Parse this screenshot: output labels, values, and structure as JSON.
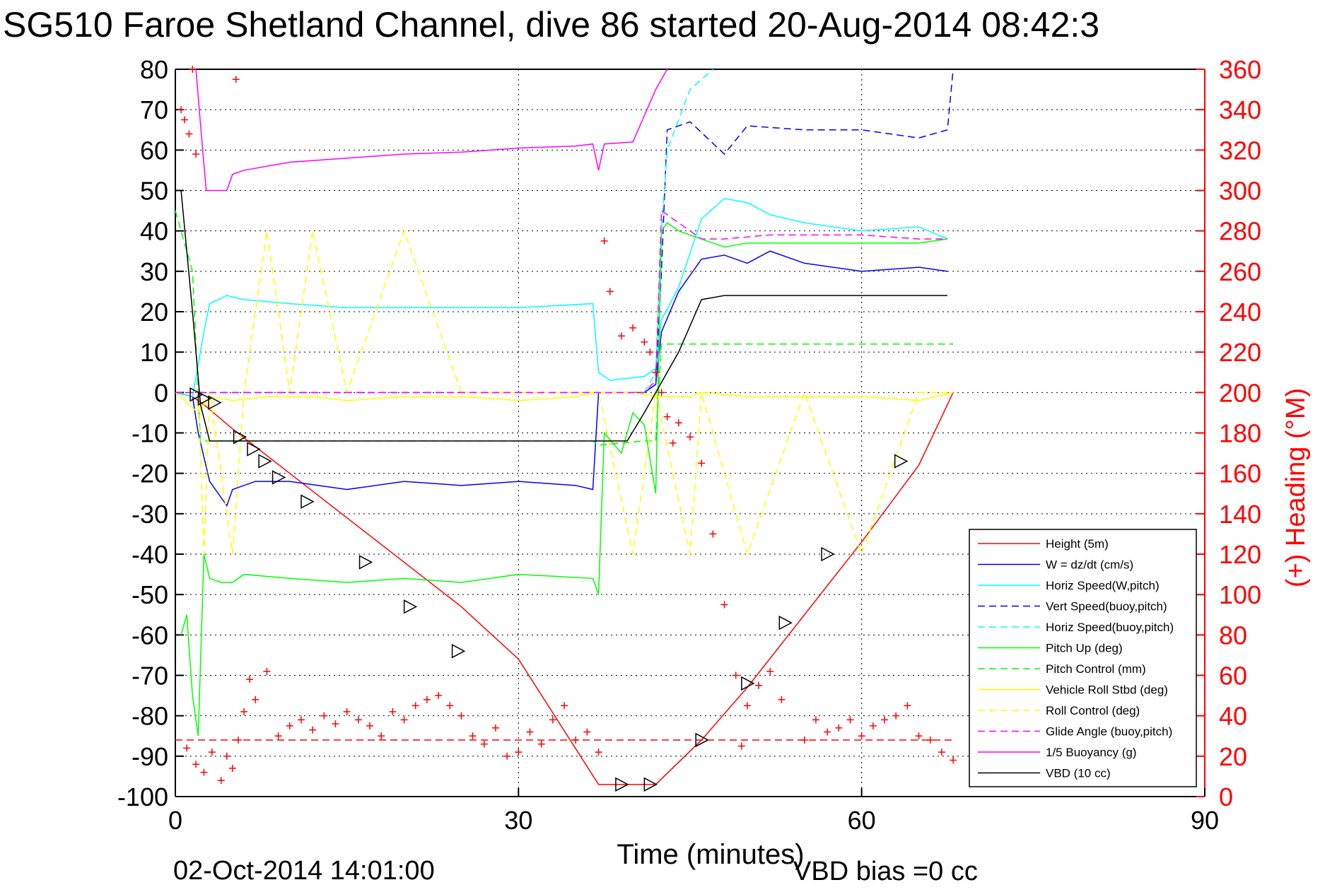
{
  "chart_data": {
    "type": "line",
    "title": "SG510 Faroe Shetland Channel, dive 86 started 20-Aug-2014 08:42:3",
    "xlabel": "Time (minutes)",
    "ylabel_right": "(+) Heading (°M)",
    "footer_left": "02-Oct-2014 14:01:00",
    "footer_right": "VBD bias =0 cc",
    "xlim": [
      0,
      90
    ],
    "ylim_left": [
      -100,
      80
    ],
    "ylim_right": [
      0,
      360
    ],
    "xticks": [
      0,
      30,
      60,
      90
    ],
    "yticks_left": [
      80,
      70,
      60,
      50,
      40,
      30,
      20,
      10,
      0,
      -10,
      -20,
      -30,
      -40,
      -50,
      -60,
      -70,
      -80,
      -90,
      -100
    ],
    "yticks_right": [
      360,
      340,
      320,
      300,
      280,
      260,
      240,
      220,
      200,
      180,
      160,
      140,
      120,
      100,
      80,
      60,
      40,
      20,
      0
    ],
    "grid": true,
    "legend_position": "bottom-right",
    "colors": {
      "red": "#ff0000",
      "blue": "#0000ff",
      "cyan": "#00ffff",
      "green": "#00ff00",
      "yellow": "#ffff00",
      "magenta": "#ff00ff",
      "black": "#000000"
    },
    "series": [
      {
        "name": "Height (5m)",
        "color": "#ff0000",
        "dash": "solid",
        "x": [
          0,
          1.5,
          2.5,
          5,
          10,
          15,
          20,
          25,
          30,
          37,
          39,
          42,
          46,
          50,
          55,
          60,
          65,
          68
        ],
        "y": [
          0,
          -1,
          -3,
          -9,
          -20,
          -31,
          -42,
          -53,
          -66,
          -97,
          -97,
          -97,
          -86,
          -73,
          -55,
          -37,
          -18,
          0
        ]
      },
      {
        "name": "W = dz/dt (cm/s)",
        "color": "#0000ff",
        "dash": "solid",
        "x": [
          0,
          1.5,
          2,
          3,
          4.5,
          5,
          7,
          10,
          15,
          20,
          25,
          30,
          35,
          36.5,
          37,
          38,
          41,
          42,
          42.5,
          44,
          46,
          48,
          50,
          52,
          55,
          60,
          65,
          67.5
        ],
        "y": [
          0,
          -1,
          -10,
          -22,
          -28,
          -24,
          -22,
          -22,
          -24,
          -22,
          -23,
          -22,
          -23,
          -24,
          0,
          0,
          0,
          2,
          15,
          25,
          33,
          34,
          32,
          35,
          32,
          30,
          31,
          30
        ]
      },
      {
        "name": "Horiz Speed(W,pitch)",
        "color": "#00ffff",
        "dash": "solid",
        "x": [
          0,
          1.5,
          2.5,
          3,
          4.5,
          6,
          10,
          15,
          20,
          25,
          30,
          36.5,
          37,
          38,
          41,
          42,
          42.5,
          44,
          46,
          48,
          50,
          52,
          55,
          60,
          65,
          67.5
        ],
        "y": [
          0,
          -1,
          15,
          22,
          24,
          23,
          22,
          21,
          21,
          21,
          21,
          22,
          5,
          3,
          4,
          6,
          18,
          26,
          43,
          48,
          47,
          44,
          42,
          40,
          41,
          38
        ]
      },
      {
        "name": "Vert Speed(buoy,pitch)",
        "color": "#0000ff",
        "dash": "dashed",
        "x": [
          0,
          1.5,
          2,
          3,
          36.5,
          37,
          41,
          42,
          42.5,
          43,
          45,
          48,
          50,
          55,
          60,
          65,
          67.5,
          68
        ],
        "y": [
          0,
          0,
          0,
          0,
          0,
          0,
          0,
          2,
          30,
          65,
          67,
          59,
          66,
          65,
          65,
          63,
          65,
          80
        ]
      },
      {
        "name": "Horiz Speed(buoy,pitch)",
        "color": "#00ffff",
        "dash": "dashed",
        "x": [
          41,
          42,
          42.5,
          43,
          45,
          47
        ],
        "y": [
          0,
          5,
          40,
          60,
          75,
          80
        ]
      },
      {
        "name": "Pitch Up (deg)",
        "color": "#00ff00",
        "dash": "solid",
        "x": [
          0.5,
          1,
          1.5,
          2,
          2.5,
          3,
          4,
          5,
          6,
          10,
          15,
          20,
          25,
          30,
          36.5,
          37,
          37.5,
          39,
          40,
          41,
          42,
          42.5,
          43,
          44,
          46,
          48,
          50,
          55,
          60,
          65,
          67.5
        ],
        "y": [
          -60,
          -55,
          -75,
          -85,
          -40,
          -46,
          -47,
          -47,
          -45,
          -46,
          -47,
          -46,
          -47,
          -45,
          -46,
          -50,
          -10,
          -15,
          -5,
          -8,
          -25,
          40,
          42,
          40,
          38,
          36,
          37,
          37,
          37,
          37,
          38
        ]
      },
      {
        "name": "Pitch Control (mm)",
        "color": "#00ff00",
        "dash": "dashed",
        "x": [
          0,
          1.5,
          2.2,
          3,
          36.5,
          37,
          41,
          42,
          42.5,
          43,
          45,
          50,
          60,
          68
        ],
        "y": [
          45,
          30,
          -12,
          -12,
          -12,
          -13,
          -12,
          -12,
          12,
          12,
          12,
          12,
          12,
          12
        ]
      },
      {
        "name": "Vehicle Roll Stbd (deg)",
        "color": "#ffff00",
        "dash": "solid",
        "x": [
          0,
          2,
          3,
          5,
          8,
          10,
          12,
          15,
          20,
          25,
          30,
          35,
          37,
          40,
          42,
          45,
          46,
          50,
          55,
          60,
          65,
          68
        ],
        "y": [
          0,
          -5,
          -1,
          -2,
          -1,
          -1,
          -1,
          -2,
          -1,
          -1,
          -2,
          -1,
          0,
          0,
          -1,
          -1,
          0,
          -1,
          -1,
          -1,
          -2,
          0
        ]
      },
      {
        "name": "Roll Control (deg)",
        "color": "#ffff00",
        "dash": "dashed",
        "x": [
          0,
          2,
          2.5,
          3,
          5,
          6,
          8,
          10,
          12,
          15,
          20,
          25,
          30,
          35,
          37,
          40,
          42,
          45,
          46,
          50,
          55,
          60,
          65,
          68
        ],
        "y": [
          0,
          0,
          -40,
          0,
          -40,
          0,
          40,
          0,
          40,
          0,
          40,
          0,
          0,
          0,
          0,
          -40,
          0,
          -40,
          0,
          -40,
          0,
          -40,
          0,
          0
        ]
      },
      {
        "name": "Glide Angle (buoy,pitch)",
        "color": "#ff00ff",
        "dash": "dashed",
        "x": [
          0,
          10,
          20,
          30,
          37,
          41,
          42,
          42.5,
          44,
          46,
          48,
          52,
          56,
          60,
          65,
          67.5
        ],
        "y": [
          0,
          0,
          0,
          0,
          0,
          0,
          3,
          45,
          42,
          38,
          38,
          39,
          39,
          39,
          38,
          38
        ]
      },
      {
        "name": "1/5 Buoyancy (g)",
        "color": "#ff00ff",
        "dash": "solid",
        "x": [
          1.8,
          2.3,
          2.7,
          3.5,
          4.5,
          5,
          6,
          10,
          15,
          20,
          25,
          30,
          35,
          36.5,
          37,
          37.5,
          40,
          42,
          43
        ],
        "y": [
          80,
          63,
          50,
          50,
          50,
          54,
          55,
          57,
          58,
          59,
          59.5,
          60.5,
          61,
          61.5,
          55,
          61.5,
          62,
          75,
          80
        ]
      },
      {
        "name": "VBD (10 cc)",
        "color": "#000000",
        "dash": "solid",
        "x": [
          0.5,
          1.5,
          2.2,
          3,
          5,
          36.5,
          39.5,
          41,
          42,
          43,
          44,
          46,
          48,
          55,
          60,
          67.5
        ],
        "y": [
          50,
          20,
          -3,
          -12,
          -12,
          -12,
          -12,
          -5,
          0,
          5,
          10,
          23,
          24,
          24,
          24,
          24
        ]
      }
    ],
    "heading_markers": {
      "name": "(+) Heading",
      "color": "#ff0000",
      "x": [
        0.5,
        0.8,
        1.2,
        1.5,
        1.8,
        5.3,
        5.6,
        1,
        1.8,
        2.5,
        3.2,
        4,
        4.5,
        5,
        5.5,
        6,
        6.5,
        7,
        8,
        9,
        10,
        11,
        12,
        13,
        14,
        15,
        16,
        17,
        18,
        19,
        20,
        21,
        22,
        23,
        24,
        25,
        26,
        27,
        28,
        29,
        30,
        31,
        32,
        33,
        34,
        35,
        36,
        37,
        37.5,
        38,
        39,
        40,
        41,
        41.5,
        42,
        42.5,
        43,
        43.5,
        44,
        45,
        46,
        47,
        48,
        49,
        49.5,
        50,
        51,
        52,
        53,
        55,
        56,
        57,
        58,
        59,
        60,
        61,
        62,
        63,
        64,
        65,
        66,
        67,
        68
      ],
      "y": [
        340,
        335,
        328,
        360,
        318,
        355,
        362,
        24,
        16,
        12,
        22,
        8,
        20,
        14,
        28,
        42,
        58,
        48,
        62,
        30,
        35,
        38,
        33,
        40,
        36,
        42,
        38,
        35,
        30,
        42,
        38,
        45,
        48,
        50,
        45,
        40,
        30,
        26,
        34,
        20,
        22,
        32,
        26,
        38,
        45,
        28,
        32,
        22,
        275,
        250,
        228,
        232,
        225,
        220,
        210,
        200,
        188,
        175,
        185,
        178,
        165,
        130,
        95,
        60,
        25,
        45,
        55,
        62,
        48,
        28,
        38,
        32,
        34,
        38,
        30,
        35,
        38,
        40,
        45,
        30,
        28,
        22,
        18
      ]
    },
    "reference_lines": [
      {
        "name": "heading-reference",
        "color": "#ff0000",
        "dash": "dashed",
        "y_right": 28,
        "x": [
          0,
          68
        ]
      }
    ],
    "triangle_markers": {
      "x": [
        1.8,
        2.5,
        3.4,
        5.6,
        6.8,
        7.8,
        9,
        11.5,
        16.6,
        20.5,
        24.7,
        39,
        41.5,
        46,
        50,
        53.3,
        57,
        63.4
      ],
      "y": [
        -0.5,
        -1.5,
        -2.5,
        -11,
        -14,
        -17,
        -21,
        -27,
        -42,
        -53,
        -64,
        -97,
        -97,
        -86,
        -72,
        -57,
        -40,
        -17
      ]
    }
  }
}
